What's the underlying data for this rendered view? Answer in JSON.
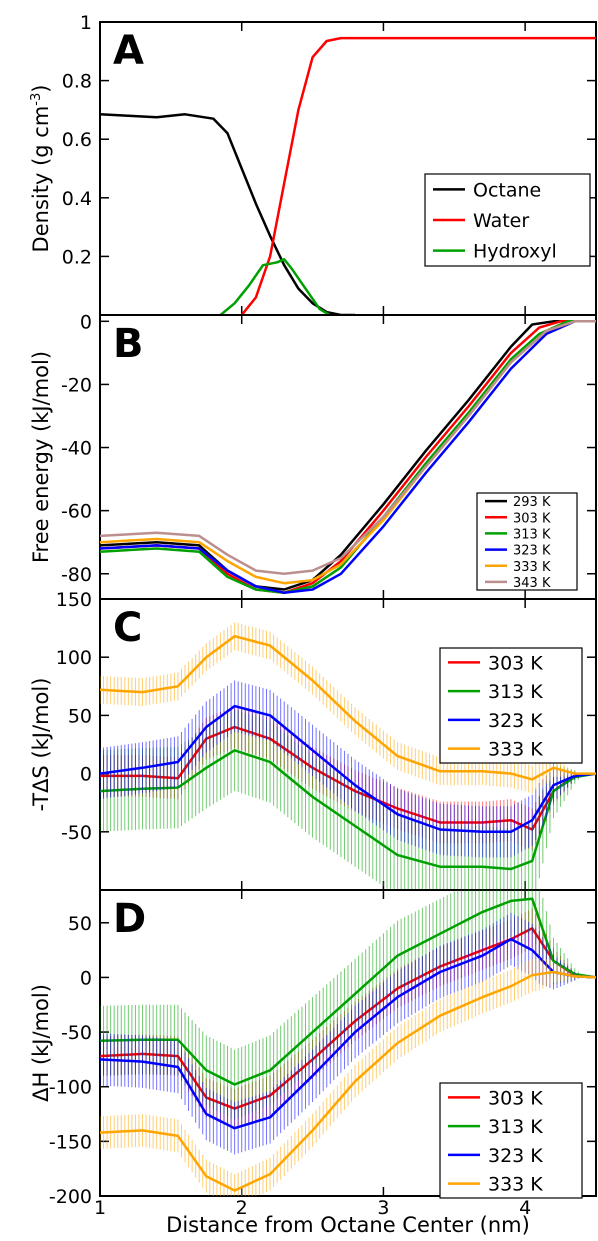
{
  "figure": {
    "xlabel": "Distance from Octane Center (nm)",
    "xticks": [
      "1",
      "2",
      "3",
      "4"
    ],
    "xlim": [
      1,
      4.5
    ]
  },
  "chart_data": [
    {
      "panel": "A",
      "type": "line",
      "ylabel": "Density (g cm",
      "ylabel_sup": "-3",
      "ylabel_close": ")",
      "xlim": [
        1,
        4.5
      ],
      "ylim": [
        0,
        1
      ],
      "yticks": [
        "0.2",
        "0.4",
        "0.6",
        "0.8",
        "1"
      ],
      "ytick_values": [
        0.2,
        0.4,
        0.6,
        0.8,
        1.0
      ],
      "legend_small": false,
      "series": [
        {
          "name": "Octane",
          "color": "#000000",
          "x": [
            1.0,
            1.2,
            1.4,
            1.6,
            1.8,
            1.9,
            2.0,
            2.1,
            2.2,
            2.3,
            2.4,
            2.5,
            2.6,
            2.7,
            2.8
          ],
          "y": [
            0.685,
            0.68,
            0.675,
            0.685,
            0.67,
            0.62,
            0.5,
            0.38,
            0.27,
            0.17,
            0.09,
            0.04,
            0.01,
            0.0,
            0.0
          ]
        },
        {
          "name": "Water",
          "color": "#ff0000",
          "x": [
            2.0,
            2.1,
            2.2,
            2.3,
            2.4,
            2.5,
            2.6,
            2.7,
            2.8,
            3.0,
            3.5,
            4.0,
            4.5
          ],
          "y": [
            0.0,
            0.06,
            0.2,
            0.45,
            0.7,
            0.88,
            0.935,
            0.945,
            0.945,
            0.945,
            0.945,
            0.945,
            0.945
          ]
        },
        {
          "name": "Hydroxyl",
          "color": "#00a000",
          "x": [
            1.85,
            1.95,
            2.05,
            2.15,
            2.25,
            2.3,
            2.35,
            2.45,
            2.55,
            2.62
          ],
          "y": [
            0.0,
            0.04,
            0.1,
            0.17,
            0.18,
            0.19,
            0.16,
            0.09,
            0.02,
            0.0
          ]
        }
      ]
    },
    {
      "panel": "B",
      "type": "line",
      "ylabel": "Free energy (kJ/mol)",
      "xlim": [
        1,
        4.5
      ],
      "ylim": [
        -88,
        2
      ],
      "yticks": [
        "-80",
        "-60",
        "-40",
        "-20",
        "0"
      ],
      "ytick_values": [
        -80,
        -60,
        -40,
        -20,
        0
      ],
      "legend_small": true,
      "series": [
        {
          "name": "293 K",
          "color": "#000000",
          "x": [
            1.0,
            1.4,
            1.7,
            1.9,
            2.1,
            2.3,
            2.5,
            2.7,
            3.0,
            3.3,
            3.6,
            3.9,
            4.05,
            4.2,
            4.5
          ],
          "y": [
            -71,
            -70,
            -71,
            -79,
            -84,
            -85,
            -82,
            -74,
            -58,
            -41,
            -25,
            -8,
            -1,
            0,
            0
          ]
        },
        {
          "name": "303 K",
          "color": "#ff0000",
          "x": [
            1.0,
            1.4,
            1.7,
            1.9,
            2.1,
            2.3,
            2.5,
            2.7,
            3.0,
            3.3,
            3.6,
            3.9,
            4.1,
            4.25,
            4.5
          ],
          "y": [
            -72,
            -71,
            -72,
            -80,
            -85,
            -86,
            -83,
            -76,
            -60,
            -43,
            -27,
            -10,
            -2,
            0,
            0
          ]
        },
        {
          "name": "313 K",
          "color": "#00a000",
          "x": [
            1.0,
            1.4,
            1.7,
            1.9,
            2.1,
            2.3,
            2.5,
            2.7,
            3.0,
            3.3,
            3.6,
            3.9,
            4.1,
            4.3,
            4.5
          ],
          "y": [
            -73,
            -72,
            -73,
            -81,
            -85,
            -86,
            -84,
            -78,
            -62,
            -45,
            -29,
            -12,
            -4,
            0,
            0
          ]
        },
        {
          "name": "323 K",
          "color": "#0000ff",
          "x": [
            1.0,
            1.4,
            1.7,
            1.9,
            2.1,
            2.3,
            2.5,
            2.7,
            3.0,
            3.3,
            3.6,
            3.9,
            4.15,
            4.35,
            4.5
          ],
          "y": [
            -72,
            -71,
            -72,
            -79,
            -84,
            -86,
            -85,
            -80,
            -65,
            -48,
            -32,
            -15,
            -4,
            0,
            0
          ]
        },
        {
          "name": "333 K",
          "color": "#ffa500",
          "x": [
            1.0,
            1.4,
            1.7,
            1.9,
            2.1,
            2.3,
            2.5,
            2.7,
            3.0,
            3.3,
            3.6,
            3.9,
            4.15,
            4.35,
            4.5
          ],
          "y": [
            -70,
            -69,
            -70,
            -76,
            -81,
            -83,
            -82,
            -77,
            -63,
            -46,
            -30,
            -13,
            -3,
            0,
            0
          ]
        },
        {
          "name": "343 K",
          "color": "#bc8f8f",
          "x": [
            1.0,
            1.4,
            1.7,
            1.9,
            2.1,
            2.3,
            2.5,
            2.7,
            3.0,
            3.3,
            3.6,
            3.9,
            4.15,
            4.35,
            4.5
          ],
          "y": [
            -68,
            -67,
            -68,
            -74,
            -79,
            -80,
            -79,
            -75,
            -62,
            -46,
            -30,
            -13,
            -3,
            0,
            0
          ]
        }
      ]
    },
    {
      "panel": "C",
      "type": "line",
      "ylabel": "-TΔS (kJ/mol)",
      "xlim": [
        1,
        4.5
      ],
      "ylim": [
        -100,
        150
      ],
      "yticks": [
        "-50",
        "0",
        "50",
        "100",
        "150"
      ],
      "ytick_values": [
        -50,
        0,
        50,
        100,
        150
      ],
      "legend_small": false,
      "series": [
        {
          "name": "303 K",
          "color": "#ff0000",
          "err": 18,
          "x": [
            1.0,
            1.3,
            1.55,
            1.75,
            1.95,
            2.2,
            2.5,
            2.8,
            3.1,
            3.4,
            3.7,
            3.9,
            4.05,
            4.2,
            4.35,
            4.5
          ],
          "y": [
            -2,
            -2,
            -4,
            30,
            40,
            30,
            5,
            -15,
            -30,
            -42,
            -42,
            -40,
            -48,
            -15,
            -2,
            0
          ]
        },
        {
          "name": "313 K",
          "color": "#00a000",
          "err": 35,
          "x": [
            1.0,
            1.3,
            1.55,
            1.75,
            1.95,
            2.2,
            2.5,
            2.8,
            3.1,
            3.4,
            3.7,
            3.9,
            4.05,
            4.2,
            4.35,
            4.5
          ],
          "y": [
            -15,
            -13,
            -12,
            5,
            20,
            10,
            -20,
            -45,
            -70,
            -80,
            -80,
            -82,
            -75,
            -15,
            -3,
            0
          ]
        },
        {
          "name": "323 K",
          "color": "#0000ff",
          "err": 22,
          "x": [
            1.0,
            1.3,
            1.55,
            1.75,
            1.95,
            2.2,
            2.5,
            2.8,
            3.1,
            3.4,
            3.7,
            3.9,
            4.05,
            4.2,
            4.35,
            4.5
          ],
          "y": [
            0,
            5,
            10,
            40,
            58,
            50,
            20,
            -10,
            -35,
            -48,
            -50,
            -50,
            -40,
            -10,
            -2,
            0
          ]
        },
        {
          "name": "333 K",
          "color": "#ffa500",
          "err": 12,
          "x": [
            1.0,
            1.3,
            1.55,
            1.75,
            1.95,
            2.2,
            2.5,
            2.8,
            3.1,
            3.4,
            3.7,
            3.9,
            4.05,
            4.2,
            4.35,
            4.5
          ],
          "y": [
            72,
            70,
            75,
            100,
            118,
            110,
            80,
            45,
            15,
            2,
            2,
            0,
            -5,
            5,
            0,
            0
          ]
        }
      ]
    },
    {
      "panel": "D",
      "type": "line",
      "ylabel": "ΔH (kJ/mol)",
      "xlim": [
        1,
        4.5
      ],
      "ylim": [
        -200,
        80
      ],
      "yticks": [
        "-200",
        "-150",
        "-100",
        "-50",
        "0",
        "50"
      ],
      "ytick_values": [
        -200,
        -150,
        -100,
        -50,
        0,
        50
      ],
      "legend_small": false,
      "series": [
        {
          "name": "303 K",
          "color": "#ff0000",
          "err": 18,
          "x": [
            1.0,
            1.3,
            1.55,
            1.75,
            1.95,
            2.2,
            2.5,
            2.8,
            3.1,
            3.4,
            3.7,
            3.9,
            4.05,
            4.2,
            4.35,
            4.5
          ],
          "y": [
            -72,
            -70,
            -72,
            -110,
            -120,
            -108,
            -75,
            -40,
            -10,
            10,
            25,
            35,
            45,
            15,
            2,
            0
          ]
        },
        {
          "name": "313 K",
          "color": "#00a000",
          "err": 32,
          "x": [
            1.0,
            1.3,
            1.55,
            1.75,
            1.95,
            2.2,
            2.5,
            2.8,
            3.1,
            3.4,
            3.7,
            3.9,
            4.05,
            4.2,
            4.35,
            4.5
          ],
          "y": [
            -58,
            -57,
            -57,
            -85,
            -98,
            -85,
            -50,
            -15,
            20,
            40,
            60,
            70,
            72,
            15,
            3,
            0
          ]
        },
        {
          "name": "323 K",
          "color": "#0000ff",
          "err": 24,
          "x": [
            1.0,
            1.3,
            1.55,
            1.75,
            1.95,
            2.2,
            2.5,
            2.8,
            3.1,
            3.4,
            3.7,
            3.9,
            4.05,
            4.2,
            4.35,
            4.5
          ],
          "y": [
            -75,
            -77,
            -82,
            -125,
            -138,
            -128,
            -90,
            -50,
            -18,
            5,
            20,
            35,
            25,
            5,
            1,
            0
          ]
        },
        {
          "name": "333 K",
          "color": "#ffa500",
          "err": 15,
          "x": [
            1.0,
            1.3,
            1.55,
            1.75,
            1.95,
            2.2,
            2.5,
            2.8,
            3.1,
            3.4,
            3.7,
            3.9,
            4.05,
            4.2,
            4.35,
            4.5
          ],
          "y": [
            -142,
            -140,
            -145,
            -182,
            -195,
            -180,
            -140,
            -95,
            -60,
            -35,
            -18,
            -8,
            2,
            5,
            1,
            0
          ]
        }
      ]
    }
  ]
}
